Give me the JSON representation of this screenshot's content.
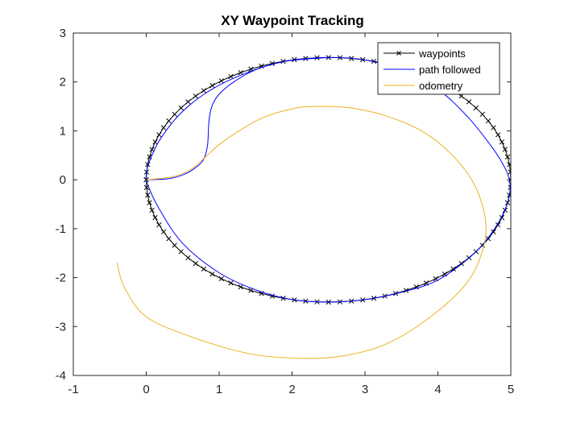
{
  "chart_data": {
    "type": "line",
    "title": "XY Waypoint Tracking",
    "xlabel": "",
    "ylabel": "",
    "xlim": [
      -1,
      5
    ],
    "ylim": [
      -4,
      3
    ],
    "xticks": [
      -1,
      0,
      1,
      2,
      3,
      4,
      5
    ],
    "yticks": [
      -4,
      -3,
      -2,
      -1,
      0,
      1,
      2,
      3
    ],
    "grid": false,
    "legend_position": "top-right",
    "series": [
      {
        "name": "waypoints",
        "color": "#000000",
        "marker": "x",
        "shape": "ellipse",
        "center": [
          2.5,
          0
        ],
        "semi_axes": [
          2.5,
          2.5
        ],
        "point_count": 100
      },
      {
        "name": "path followed",
        "color": "#0000ff",
        "marker": "none",
        "points": [
          [
            0,
            0
          ],
          [
            0.3,
            0.02
          ],
          [
            0.5,
            0.1
          ],
          [
            0.65,
            0.22
          ],
          [
            0.78,
            0.4
          ],
          [
            0.84,
            0.7
          ],
          [
            0.86,
            1.2
          ],
          [
            0.9,
            1.5
          ],
          [
            1.0,
            1.75
          ],
          [
            1.2,
            2.0
          ],
          [
            1.5,
            2.25
          ],
          [
            1.9,
            2.42
          ],
          [
            2.3,
            2.49
          ],
          [
            2.6,
            2.5
          ],
          [
            3.0,
            2.45
          ],
          [
            3.5,
            2.25
          ],
          [
            4.0,
            1.85
          ],
          [
            4.4,
            1.3
          ],
          [
            4.7,
            0.75
          ],
          [
            4.88,
            0.35
          ],
          [
            4.98,
            0.0
          ],
          [
            4.97,
            -0.4
          ],
          [
            4.8,
            -0.95
          ],
          [
            4.5,
            -1.5
          ],
          [
            4.0,
            -2.05
          ],
          [
            3.5,
            -2.3
          ],
          [
            3.0,
            -2.45
          ],
          [
            2.5,
            -2.5
          ],
          [
            2.0,
            -2.45
          ],
          [
            1.5,
            -2.25
          ],
          [
            1.0,
            -1.9
          ],
          [
            0.5,
            -1.3
          ],
          [
            0.18,
            -0.6
          ],
          [
            0.02,
            -0.1
          ],
          [
            0.0,
            0.1
          ],
          [
            0.05,
            0.4
          ],
          [
            0.2,
            0.85
          ],
          [
            0.5,
            1.4
          ],
          [
            0.9,
            1.85
          ],
          [
            1.4,
            2.2
          ],
          [
            1.9,
            2.42
          ],
          [
            2.5,
            2.5
          ]
        ]
      },
      {
        "name": "odometry",
        "color": "#edb120",
        "marker": "none",
        "points": [
          [
            0,
            0
          ],
          [
            0.35,
            0.06
          ],
          [
            0.6,
            0.2
          ],
          [
            0.8,
            0.45
          ],
          [
            1.0,
            0.72
          ],
          [
            1.25,
            0.98
          ],
          [
            1.6,
            1.27
          ],
          [
            2.0,
            1.45
          ],
          [
            2.3,
            1.5
          ],
          [
            2.8,
            1.47
          ],
          [
            3.3,
            1.3
          ],
          [
            3.8,
            0.98
          ],
          [
            4.2,
            0.5
          ],
          [
            4.5,
            -0.1
          ],
          [
            4.65,
            -0.8
          ],
          [
            4.62,
            -1.4
          ],
          [
            4.4,
            -2.1
          ],
          [
            3.9,
            -2.8
          ],
          [
            3.3,
            -3.35
          ],
          [
            2.7,
            -3.6
          ],
          [
            2.1,
            -3.65
          ],
          [
            1.4,
            -3.55
          ],
          [
            0.6,
            -3.2
          ],
          [
            0.0,
            -2.8
          ],
          [
            -0.3,
            -2.2
          ],
          [
            -0.4,
            -1.7
          ]
        ]
      }
    ]
  }
}
